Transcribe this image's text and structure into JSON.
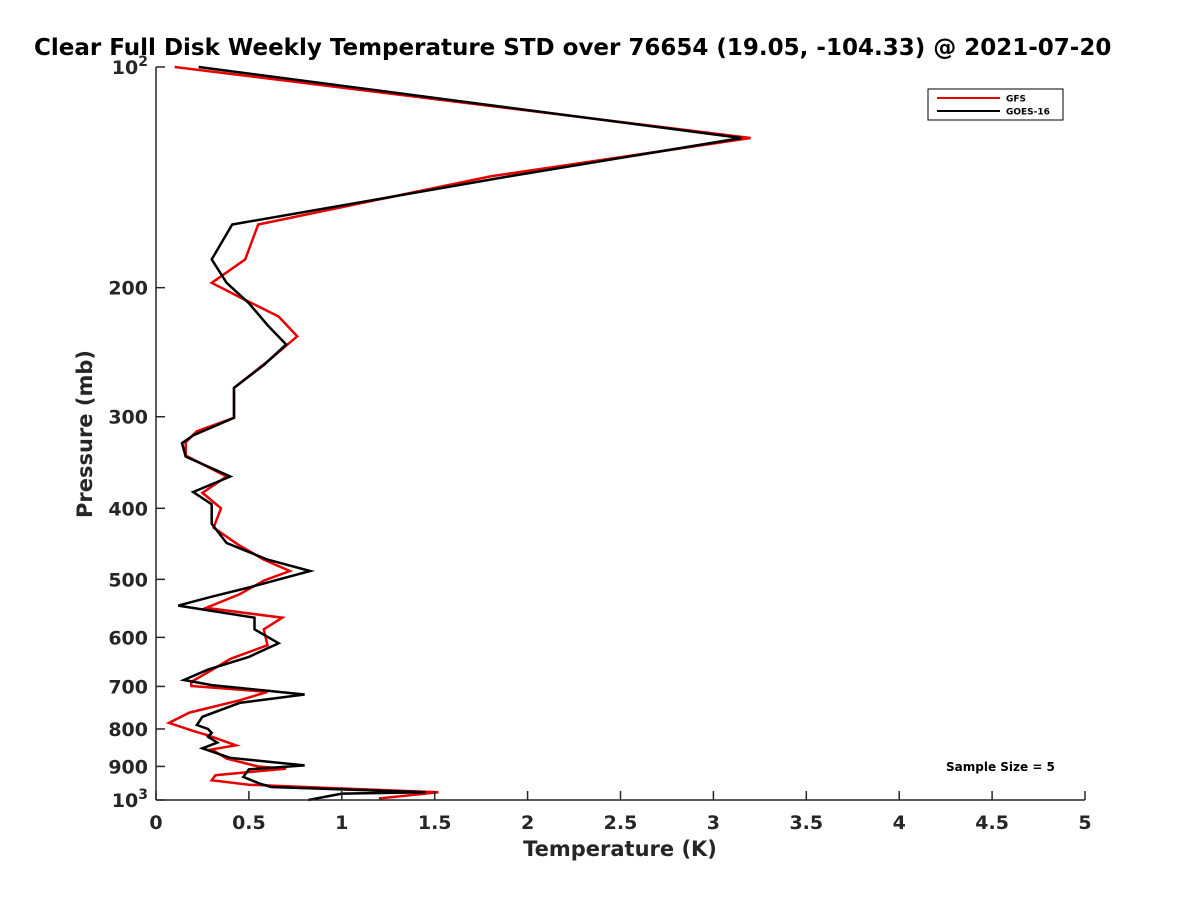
{
  "chart_data": {
    "type": "line",
    "title": "Clear Full Disk Weekly Temperature STD over 76654 (19.05, -104.33) @ 2021-07-20",
    "xlabel": "Temperature (K)",
    "ylabel": "Pressure (mb)",
    "xlim": [
      0,
      5
    ],
    "ylim": [
      100,
      1000
    ],
    "yscale": "log",
    "y_reversed": true,
    "xticks": [
      {
        "value": 0,
        "label": "0"
      },
      {
        "value": 0.5,
        "label": "0.5"
      },
      {
        "value": 1,
        "label": "1"
      },
      {
        "value": 1.5,
        "label": "1.5"
      },
      {
        "value": 2,
        "label": "2"
      },
      {
        "value": 2.5,
        "label": "2.5"
      },
      {
        "value": 3,
        "label": "3"
      },
      {
        "value": 3.5,
        "label": "3.5"
      },
      {
        "value": 4,
        "label": "4"
      },
      {
        "value": 4.5,
        "label": "4.5"
      },
      {
        "value": 5,
        "label": "5"
      }
    ],
    "yticks": [
      {
        "value": 100,
        "base": "10",
        "exp": "2"
      },
      {
        "value": 200,
        "label": "200"
      },
      {
        "value": 300,
        "label": "300"
      },
      {
        "value": 400,
        "label": "400"
      },
      {
        "value": 500,
        "label": "500"
      },
      {
        "value": 600,
        "label": "600"
      },
      {
        "value": 700,
        "label": "700"
      },
      {
        "value": 800,
        "label": "800"
      },
      {
        "value": 900,
        "label": "900"
      },
      {
        "value": 1000,
        "base": "10",
        "exp": "3"
      }
    ],
    "legend_position": "top-right",
    "annotation": "Sample Size = 5",
    "series": [
      {
        "name": "GFS",
        "color": "#e60000",
        "points": [
          [
            0.1,
            100
          ],
          [
            3.2,
            125
          ],
          [
            1.8,
            141
          ],
          [
            0.55,
            164
          ],
          [
            0.48,
            183
          ],
          [
            0.3,
            197
          ],
          [
            0.45,
            206
          ],
          [
            0.66,
            219
          ],
          [
            0.76,
            233
          ],
          [
            0.61,
            251
          ],
          [
            0.42,
            274
          ],
          [
            0.42,
            301
          ],
          [
            0.22,
            314
          ],
          [
            0.16,
            325
          ],
          [
            0.16,
            339
          ],
          [
            0.38,
            362
          ],
          [
            0.25,
            381
          ],
          [
            0.35,
            400
          ],
          [
            0.31,
            425
          ],
          [
            0.44,
            448
          ],
          [
            0.58,
            470
          ],
          [
            0.72,
            487
          ],
          [
            0.58,
            502
          ],
          [
            0.45,
            524
          ],
          [
            0.27,
            547
          ],
          [
            0.68,
            564
          ],
          [
            0.58,
            585
          ],
          [
            0.6,
            615
          ],
          [
            0.4,
            642
          ],
          [
            0.3,
            665
          ],
          [
            0.19,
            690
          ],
          [
            0.19,
            699
          ],
          [
            0.6,
            712
          ],
          [
            0.45,
            731
          ],
          [
            0.18,
            760
          ],
          [
            0.07,
            785
          ],
          [
            0.2,
            805
          ],
          [
            0.28,
            816
          ],
          [
            0.36,
            830
          ],
          [
            0.43,
            842
          ],
          [
            0.3,
            853
          ],
          [
            0.38,
            878
          ],
          [
            0.55,
            900
          ],
          [
            0.7,
            906
          ],
          [
            0.32,
            925
          ],
          [
            0.3,
            940
          ],
          [
            0.5,
            953
          ],
          [
            0.9,
            962
          ],
          [
            1.52,
            976
          ],
          [
            1.2,
            995
          ]
        ]
      },
      {
        "name": "GOES-16",
        "color": "#000000",
        "points": [
          [
            0.23,
            100
          ],
          [
            3.15,
            125
          ],
          [
            1.9,
            141
          ],
          [
            0.41,
            164
          ],
          [
            0.3,
            183
          ],
          [
            0.38,
            197
          ],
          [
            0.5,
            210
          ],
          [
            0.6,
            225
          ],
          [
            0.7,
            239
          ],
          [
            0.58,
            255
          ],
          [
            0.42,
            274
          ],
          [
            0.42,
            301
          ],
          [
            0.2,
            318
          ],
          [
            0.14,
            326
          ],
          [
            0.16,
            340
          ],
          [
            0.4,
            362
          ],
          [
            0.2,
            380
          ],
          [
            0.3,
            395
          ],
          [
            0.3,
            420
          ],
          [
            0.38,
            446
          ],
          [
            0.6,
            470
          ],
          [
            0.83,
            487
          ],
          [
            0.5,
            513
          ],
          [
            0.3,
            528
          ],
          [
            0.12,
            543
          ],
          [
            0.53,
            564
          ],
          [
            0.53,
            585
          ],
          [
            0.66,
            611
          ],
          [
            0.5,
            638
          ],
          [
            0.28,
            664
          ],
          [
            0.15,
            686
          ],
          [
            0.3,
            697
          ],
          [
            0.8,
            718
          ],
          [
            0.45,
            737
          ],
          [
            0.25,
            770
          ],
          [
            0.22,
            790
          ],
          [
            0.28,
            800
          ],
          [
            0.3,
            810
          ],
          [
            0.28,
            820
          ],
          [
            0.33,
            835
          ],
          [
            0.25,
            850
          ],
          [
            0.4,
            876
          ],
          [
            0.8,
            897
          ],
          [
            0.5,
            908
          ],
          [
            0.47,
            930
          ],
          [
            0.56,
            950
          ],
          [
            0.62,
            960
          ],
          [
            1.45,
            976
          ],
          [
            1.0,
            980
          ],
          [
            0.82,
            1000
          ]
        ]
      }
    ]
  }
}
